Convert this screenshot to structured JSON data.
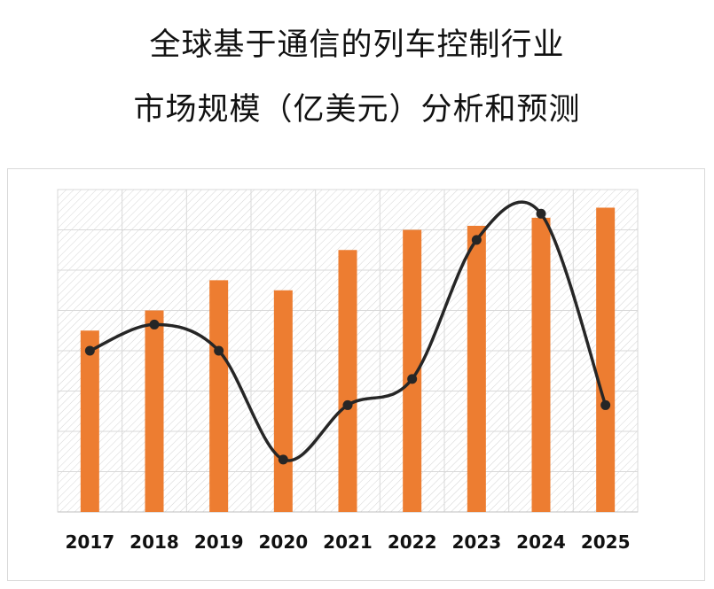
{
  "title": {
    "line1": "全球基于通信的列车控制行业",
    "line2": "市场规模（亿美元）分析和预测"
  },
  "colors": {
    "bar": "#ED7D31",
    "line": "#262626",
    "grid": "#d9d9d9",
    "plot_hatch": "#cfcfcf"
  },
  "chart_data": {
    "type": "bar",
    "categories": [
      "2017",
      "2018",
      "2019",
      "2020",
      "2021",
      "2022",
      "2023",
      "2024",
      "2025"
    ],
    "ylim": [
      0,
      8
    ],
    "series": [
      {
        "type": "bar",
        "values": [
          4.5,
          5.0,
          5.75,
          5.5,
          6.5,
          7.0,
          7.1,
          7.3,
          7.55
        ]
      },
      {
        "type": "line",
        "smooth": true,
        "values": [
          4.0,
          4.65,
          4.0,
          1.3,
          2.65,
          3.3,
          6.75,
          7.4,
          2.65
        ]
      }
    ],
    "grid": true,
    "legend": "none",
    "title": "",
    "xlabel": "",
    "ylabel": ""
  }
}
